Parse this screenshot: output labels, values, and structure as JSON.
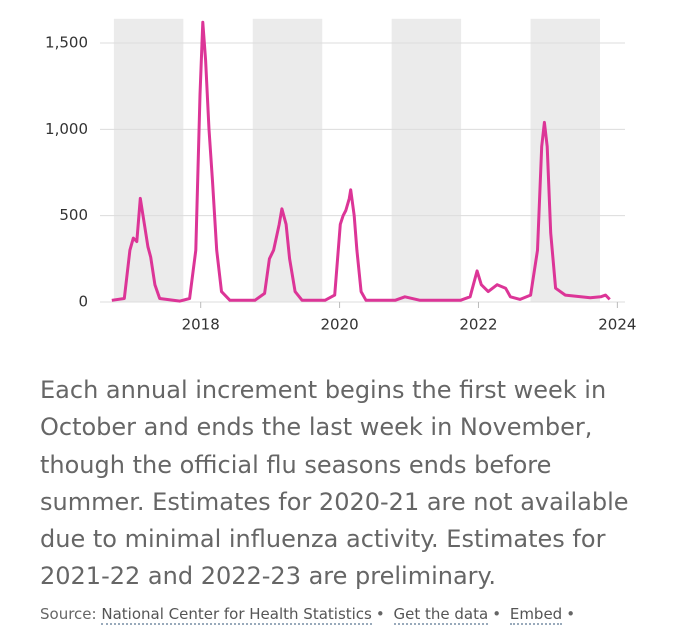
{
  "chart_data": {
    "type": "line",
    "x": [
      2016.72,
      2016.9,
      2016.98,
      2017.03,
      2017.08,
      2017.13,
      2017.19,
      2017.24,
      2017.28,
      2017.34,
      2017.41,
      2017.7,
      2017.84,
      2017.93,
      2017.99,
      2018.03,
      2018.07,
      2018.12,
      2018.17,
      2018.23,
      2018.3,
      2018.42,
      2018.78,
      2018.92,
      2018.99,
      2019.05,
      2019.13,
      2019.17,
      2019.23,
      2019.28,
      2019.36,
      2019.46,
      2019.79,
      2019.93,
      2020.01,
      2020.05,
      2020.09,
      2020.14,
      2020.16,
      2020.21,
      2020.25,
      2020.31,
      2020.38,
      2020.8,
      2020.94,
      2021.16,
      2021.74,
      2021.88,
      2021.98,
      2022.04,
      2022.14,
      2022.27,
      2022.39,
      2022.46,
      2022.6,
      2022.75,
      2022.85,
      2022.91,
      2022.95,
      2022.99,
      2023.04,
      2023.11,
      2023.25,
      2023.61,
      2023.76,
      2023.83,
      2023.89
    ],
    "values": [
      10,
      20,
      300,
      370,
      350,
      600,
      450,
      320,
      260,
      100,
      20,
      5,
      20,
      300,
      1200,
      1620,
      1400,
      1000,
      700,
      300,
      60,
      10,
      10,
      50,
      250,
      300,
      450,
      540,
      450,
      250,
      60,
      10,
      10,
      40,
      450,
      500,
      530,
      600,
      650,
      500,
      300,
      60,
      10,
      10,
      30,
      10,
      10,
      30,
      180,
      100,
      60,
      100,
      80,
      30,
      15,
      40,
      300,
      900,
      1040,
      900,
      400,
      80,
      40,
      25,
      30,
      40,
      15
    ],
    "color": "#dc3597",
    "shaded_periods": [
      [
        2016.75,
        2017.75
      ],
      [
        2018.75,
        2019.75
      ],
      [
        2020.75,
        2021.75
      ],
      [
        2022.75,
        2023.75
      ]
    ],
    "xlim": [
      2016.55,
      2024.11
    ],
    "xticks": [
      2018,
      2020,
      2022,
      2024
    ],
    "ylim": [
      0,
      1640
    ],
    "yticks": [
      0,
      500,
      {
        "value": 1000,
        "label": "1,000"
      },
      {
        "value": 1500,
        "label": "1,500"
      }
    ],
    "grid": true
  },
  "caption": "Each annual increment begins the first week in October and ends the last week in November, though the official flu seasons ends before summer. Estimates for 2020-21 are not available due to minimal influenza activity. Estimates for 2021-22 and 2022-23 are preliminary.",
  "source": {
    "label": "Source:",
    "links": [
      "National Center for Health Statistics",
      "Get the data",
      "Embed"
    ]
  }
}
